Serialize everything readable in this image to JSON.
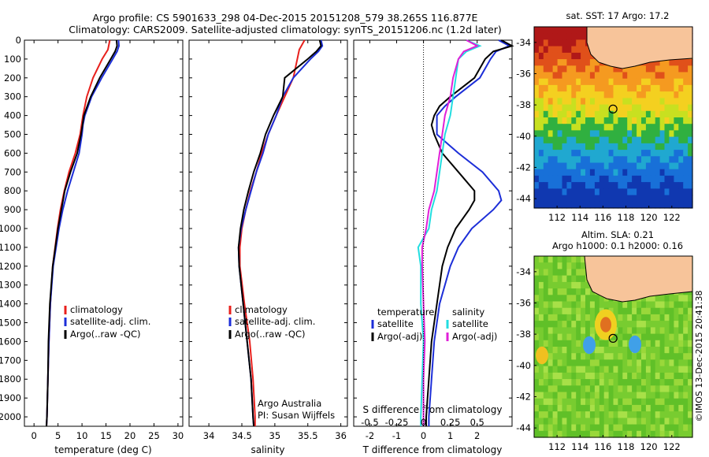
{
  "header": {
    "line1": "Argo profile: CS 5901633_298 04-Dec-2015 20151208_579 38.265S 116.877E",
    "line2": "Climatology: CARS2009. Satellite-adjusted climatology: synTS_20151206.nc (1.2d later)"
  },
  "side_credit": "©IMOS 13-Dec-2015 20:41:38",
  "colors": {
    "clim": "#e8201c",
    "sat": "#1c2ed8",
    "argo": "#000000",
    "sal_sat": "#22dde0",
    "sal_argo": "#e020d8",
    "land": "#f7c49a"
  },
  "depth_ticks": [
    "0",
    "100",
    "200",
    "300",
    "400",
    "500",
    "600",
    "700",
    "800",
    "900",
    "1000",
    "1100",
    "1200",
    "1300",
    "1400",
    "1500",
    "1600",
    "1700",
    "1800",
    "1900",
    "2000"
  ],
  "chart_data": [
    {
      "type": "line",
      "panel": "temperature",
      "xlabel": "temperature (deg C)",
      "xlim": [
        -2,
        31
      ],
      "ylim": [
        2050,
        0
      ],
      "x_ticks": [
        "0",
        "5",
        "10",
        "15",
        "20",
        "25",
        "30"
      ],
      "legend": [
        "climatology",
        "satellite-adj. clim.",
        "Argo(..raw -QC)"
      ],
      "series": [
        {
          "name": "climatology",
          "color": "#e8201c",
          "depth": [
            0,
            50,
            100,
            200,
            300,
            400,
            500,
            600,
            700,
            800,
            900,
            1000,
            1200,
            1400,
            1600,
            1800,
            2000,
            2050
          ],
          "values": [
            15.8,
            15.4,
            14.2,
            12.3,
            11.0,
            10.2,
            9.6,
            8.6,
            7.3,
            6.3,
            5.5,
            4.9,
            3.9,
            3.4,
            3.1,
            2.9,
            2.7,
            2.6
          ]
        },
        {
          "name": "satellite-adj. clim.",
          "color": "#1c2ed8",
          "depth": [
            0,
            30,
            60,
            100,
            200,
            300,
            400,
            450,
            500,
            600,
            700,
            800,
            900,
            1000,
            1200,
            1400,
            1600,
            1800,
            2000,
            2050
          ],
          "values": [
            17.6,
            17.7,
            17.3,
            16.4,
            14.1,
            12.0,
            10.6,
            10.2,
            10.0,
            9.4,
            8.2,
            7.0,
            6.0,
            5.2,
            4.0,
            3.4,
            3.1,
            2.9,
            2.7,
            2.6
          ]
        },
        {
          "name": "Argo(..raw -QC)",
          "color": "#000000",
          "depth": [
            0,
            30,
            60,
            100,
            200,
            300,
            400,
            450,
            500,
            600,
            700,
            800,
            900,
            1000,
            1200,
            1400,
            1600,
            1800,
            2000,
            2050
          ],
          "values": [
            17.2,
            17.3,
            16.9,
            16.0,
            13.7,
            11.8,
            10.4,
            10.1,
            9.8,
            9.0,
            7.6,
            6.4,
            5.7,
            5.0,
            3.9,
            3.3,
            3.0,
            2.9,
            2.7,
            2.6
          ]
        }
      ]
    },
    {
      "type": "line",
      "panel": "salinity",
      "xlabel": "salinity",
      "xlim": [
        33.7,
        36.1
      ],
      "ylim": [
        2050,
        0
      ],
      "x_ticks": [
        "34",
        "34.5",
        "35",
        "35.5",
        "36"
      ],
      "legend": [
        "climatology",
        "satellite-adj. clim.",
        "Argo(..raw -QC)"
      ],
      "annotation": [
        "Argo Australia",
        "PI: Susan Wijffels"
      ],
      "series": [
        {
          "name": "climatology",
          "color": "#e8201c",
          "depth": [
            0,
            50,
            100,
            200,
            300,
            400,
            500,
            600,
            700,
            800,
            900,
            1000,
            1100,
            1200,
            1400,
            1600,
            1800,
            2000,
            2050
          ],
          "values": [
            35.45,
            35.37,
            35.34,
            35.28,
            35.15,
            35.02,
            34.9,
            34.8,
            34.72,
            34.63,
            34.56,
            34.5,
            34.47,
            34.47,
            34.54,
            34.62,
            34.67,
            34.7,
            34.7
          ]
        },
        {
          "name": "satellite-adj. clim.",
          "color": "#1c2ed8",
          "depth": [
            0,
            30,
            60,
            100,
            200,
            300,
            400,
            500,
            600,
            700,
            800,
            900,
            1000,
            1100,
            1200,
            1400,
            1600,
            1800,
            2000,
            2050
          ],
          "values": [
            35.7,
            35.72,
            35.66,
            35.54,
            35.28,
            35.12,
            35.02,
            34.9,
            34.82,
            34.72,
            34.64,
            34.56,
            34.49,
            34.45,
            34.46,
            34.52,
            34.58,
            34.64,
            34.67,
            34.68
          ]
        },
        {
          "name": "Argo(..raw -QC)",
          "color": "#000000",
          "depth": [
            0,
            30,
            60,
            100,
            200,
            300,
            400,
            500,
            600,
            700,
            800,
            900,
            1000,
            1100,
            1200,
            1400,
            1600,
            1800,
            2000,
            2050
          ],
          "values": [
            35.68,
            35.7,
            35.63,
            35.5,
            35.15,
            35.12,
            34.98,
            34.86,
            34.78,
            34.68,
            34.6,
            34.53,
            34.48,
            34.45,
            34.46,
            34.52,
            34.58,
            34.64,
            34.67,
            34.68
          ]
        }
      ]
    },
    {
      "type": "line",
      "panel": "difference",
      "xlabel": "T difference from climatology",
      "xlabel_top": "S difference from climatology",
      "xlim": [
        -2.6,
        3.3
      ],
      "ylim": [
        2050,
        0
      ],
      "x_ticks": [
        "-2",
        "-1",
        "0",
        "1",
        "2"
      ],
      "x_ticks_top": [
        "-0.5",
        "-0.25",
        "0",
        "0.25",
        "0.5"
      ],
      "legend": [
        "temperature",
        "satellite",
        "Argo(-adj)",
        "salinity",
        "satellite",
        "Argo(-adj)"
      ],
      "series": [
        {
          "name": "satellite",
          "color": "#1c2ed8",
          "depth": [
            0,
            30,
            60,
            100,
            200,
            300,
            350,
            400,
            500,
            550,
            600,
            700,
            800,
            850,
            900,
            1000,
            1100,
            1200,
            1400,
            1600,
            1800,
            2000,
            2050
          ],
          "values": [
            2.8,
            3.2,
            2.7,
            2.5,
            2.1,
            1.2,
            0.8,
            0.5,
            0.5,
            0.9,
            1.3,
            2.2,
            2.8,
            2.9,
            2.6,
            1.8,
            1.3,
            1.0,
            0.6,
            0.4,
            0.3,
            0.2,
            0.2
          ]
        },
        {
          "name": "Argo(-adj)",
          "color": "#000000",
          "depth": [
            0,
            30,
            60,
            100,
            200,
            300,
            350,
            400,
            450,
            500,
            600,
            700,
            800,
            850,
            900,
            1000,
            1100,
            1200,
            1400,
            1600,
            1800,
            2000,
            2050
          ],
          "values": [
            2.9,
            3.3,
            2.6,
            2.3,
            1.9,
            1.0,
            0.6,
            0.4,
            0.3,
            0.4,
            0.7,
            1.3,
            1.9,
            1.9,
            1.7,
            1.2,
            0.9,
            0.7,
            0.5,
            0.3,
            0.2,
            0.1,
            0.1
          ]
        },
        {
          "name": "satellite",
          "color": "#22dde0",
          "depth": [
            0,
            30,
            60,
            100,
            200,
            300,
            400,
            500,
            600,
            700,
            800,
            900,
            1000,
            1100,
            1200,
            1400,
            1600,
            1800,
            2000,
            2050
          ],
          "values": [
            1.6,
            2.1,
            1.6,
            1.3,
            1.2,
            1.1,
            1.0,
            0.8,
            0.7,
            0.6,
            0.5,
            0.3,
            0.2,
            -0.2,
            -0.1,
            -0.1,
            0.0,
            -0.05,
            -0.1,
            -0.1
          ]
        },
        {
          "name": "Argo(-adj)",
          "color": "#e020d8",
          "depth": [
            0,
            30,
            60,
            100,
            200,
            300,
            400,
            500,
            600,
            700,
            800,
            900,
            1000,
            1100,
            1200,
            1400,
            1600,
            1800,
            2000,
            2050
          ],
          "values": [
            1.6,
            2.0,
            1.5,
            1.3,
            1.1,
            1.0,
            0.8,
            0.7,
            0.6,
            0.5,
            0.4,
            0.2,
            0.1,
            -0.05,
            -0.05,
            0.0,
            0.05,
            0.0,
            0.0,
            0.0
          ]
        }
      ]
    },
    {
      "type": "heatmap",
      "panel": "sst-map",
      "title": "sat. SST: 17 Argo: 17.2",
      "x_ticks": [
        "112",
        "114",
        "116",
        "118",
        "120",
        "122"
      ],
      "y_ticks": [
        "-34",
        "-36",
        "-38",
        "-40",
        "-42",
        "-44"
      ],
      "float_position": {
        "lon": 116.877,
        "lat": -38.265
      }
    },
    {
      "type": "heatmap",
      "panel": "sla-map",
      "title_line1": "Altim. SLA: 0.21",
      "title_line2": "Argo h1000: 0.1 h2000: 0.16",
      "x_ticks": [
        "112",
        "114",
        "116",
        "118",
        "120",
        "122"
      ],
      "y_ticks": [
        "-34",
        "-36",
        "-38",
        "-40",
        "-42",
        "-44"
      ],
      "float_position": {
        "lon": 116.877,
        "lat": -38.265
      }
    }
  ]
}
